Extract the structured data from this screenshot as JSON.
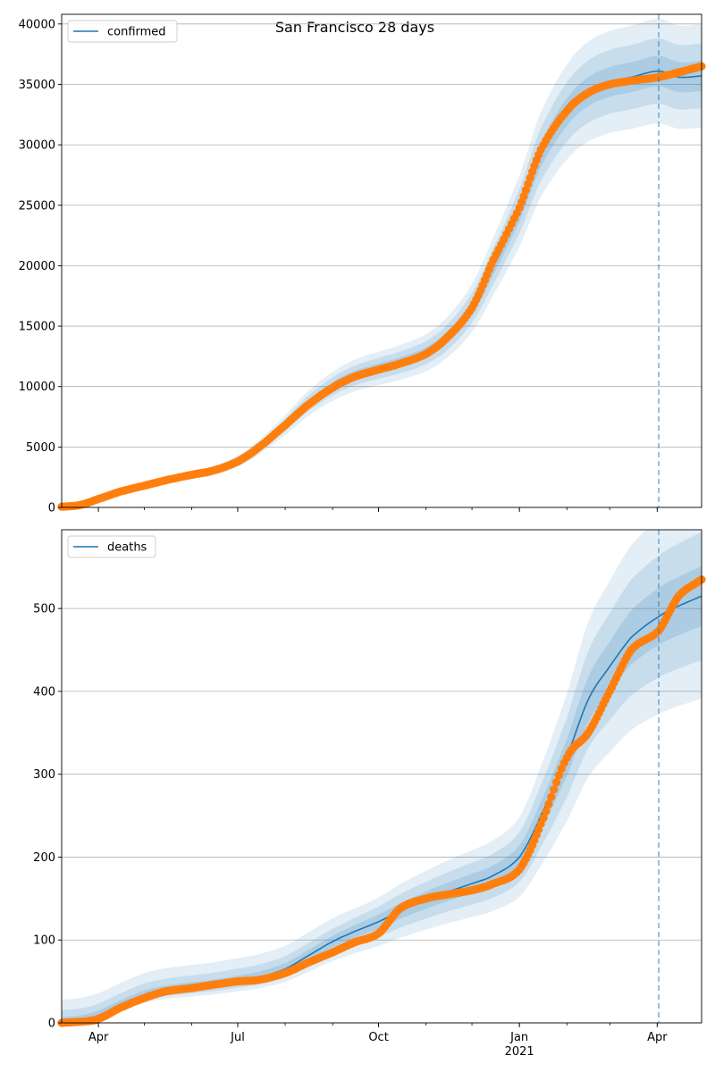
{
  "title": "San Francisco 28 days",
  "colors": {
    "line": "#1f77b4",
    "points": "#ff7f0e",
    "band": "#1f77b4",
    "grid": "#b0b0b0",
    "vline": "#1f77b4"
  },
  "x_axis": {
    "start": "2020-03-08",
    "end": "2021-04-30",
    "ticks": [
      {
        "date": "2020-04-01",
        "label": "Apr"
      },
      {
        "date": "2020-07-01",
        "label": "Jul"
      },
      {
        "date": "2020-10-01",
        "label": "Oct"
      },
      {
        "date": "2021-01-01",
        "label": "Jan",
        "sublabel": "2021"
      },
      {
        "date": "2021-04-01",
        "label": "Apr"
      }
    ],
    "forecast_start": "2021-04-02"
  },
  "chart_data": [
    {
      "type": "line",
      "legend": "confirmed",
      "legend_position": "top-left",
      "grid": "horizontal",
      "ylim": [
        0,
        40800
      ],
      "yticks": [
        0,
        5000,
        10000,
        15000,
        20000,
        25000,
        30000,
        35000,
        40000
      ],
      "fit": {
        "x": [
          "2020-03-08",
          "2020-03-20",
          "2020-04-01",
          "2020-04-15",
          "2020-05-01",
          "2020-05-15",
          "2020-06-01",
          "2020-06-15",
          "2020-07-01",
          "2020-07-15",
          "2020-08-01",
          "2020-08-15",
          "2020-09-01",
          "2020-09-15",
          "2020-10-01",
          "2020-10-15",
          "2020-11-01",
          "2020-11-15",
          "2020-12-01",
          "2020-12-15",
          "2021-01-01",
          "2021-01-15",
          "2021-02-01",
          "2021-02-15",
          "2021-03-01",
          "2021-03-15",
          "2021-04-02",
          "2021-04-15",
          "2021-04-30"
        ],
        "y": [
          30,
          150,
          700,
          1300,
          1750,
          2150,
          2650,
          3050,
          3800,
          5000,
          6800,
          8500,
          10000,
          10900,
          11500,
          12000,
          12800,
          14100,
          16500,
          20000,
          24500,
          29200,
          32700,
          34400,
          35200,
          35600,
          36100,
          35600,
          35700
        ],
        "band_pct_inner": 0.035,
        "band_pct_mid": 0.075,
        "band_pct_outer": 0.12
      },
      "observed": {
        "x": [
          "2020-03-08",
          "2020-03-20",
          "2020-04-01",
          "2020-04-15",
          "2020-05-01",
          "2020-05-15",
          "2020-06-01",
          "2020-06-15",
          "2020-07-01",
          "2020-07-15",
          "2020-08-01",
          "2020-08-15",
          "2020-09-01",
          "2020-09-15",
          "2020-10-01",
          "2020-10-15",
          "2020-11-01",
          "2020-11-15",
          "2020-12-01",
          "2020-12-15",
          "2021-01-01",
          "2021-01-15",
          "2021-02-01",
          "2021-02-15",
          "2021-03-01",
          "2021-03-15",
          "2021-04-02",
          "2021-04-15",
          "2021-04-30"
        ],
        "y": [
          50,
          200,
          700,
          1300,
          1800,
          2250,
          2700,
          3050,
          3800,
          5000,
          6800,
          8400,
          9900,
          10800,
          11400,
          11900,
          12700,
          14100,
          16500,
          20500,
          24800,
          29600,
          32800,
          34300,
          35000,
          35300,
          35600,
          36000,
          36500
        ]
      }
    },
    {
      "type": "line",
      "legend": "deaths",
      "legend_position": "top-left",
      "grid": "horizontal",
      "ylim": [
        0,
        595
      ],
      "yticks": [
        0,
        100,
        200,
        300,
        400,
        500
      ],
      "fit": {
        "x": [
          "2020-03-08",
          "2020-03-20",
          "2020-04-01",
          "2020-04-15",
          "2020-05-01",
          "2020-05-15",
          "2020-06-01",
          "2020-06-15",
          "2020-07-01",
          "2020-07-15",
          "2020-08-01",
          "2020-08-15",
          "2020-09-01",
          "2020-09-15",
          "2020-10-01",
          "2020-10-15",
          "2020-11-01",
          "2020-11-15",
          "2020-12-01",
          "2020-12-15",
          "2021-01-01",
          "2021-01-15",
          "2021-02-01",
          "2021-02-15",
          "2021-03-01",
          "2021-03-15",
          "2021-04-02",
          "2021-04-15",
          "2021-04-30"
        ],
        "y": [
          0,
          2,
          8,
          20,
          32,
          38,
          42,
          45,
          50,
          55,
          65,
          80,
          98,
          110,
          122,
          135,
          148,
          158,
          168,
          178,
          200,
          250,
          320,
          390,
          430,
          465,
          490,
          503,
          515
        ],
        "band_pct_inner": 0.07,
        "band_pct_mid": 0.15,
        "band_pct_outer": 0.24,
        "band_floor_outer": 28
      },
      "observed": {
        "x": [
          "2020-03-08",
          "2020-03-25",
          "2020-04-01",
          "2020-04-15",
          "2020-05-01",
          "2020-05-15",
          "2020-06-01",
          "2020-06-15",
          "2020-07-01",
          "2020-07-15",
          "2020-08-01",
          "2020-08-15",
          "2020-09-01",
          "2020-09-15",
          "2020-10-01",
          "2020-10-15",
          "2020-11-01",
          "2020-11-15",
          "2020-12-01",
          "2020-12-15",
          "2021-01-01",
          "2021-01-15",
          "2021-02-01",
          "2021-02-15",
          "2021-03-01",
          "2021-03-15",
          "2021-04-02",
          "2021-04-15",
          "2021-04-30"
        ],
        "y": [
          0,
          2,
          5,
          18,
          30,
          38,
          42,
          46,
          50,
          52,
          60,
          72,
          85,
          97,
          108,
          138,
          150,
          155,
          160,
          168,
          185,
          240,
          320,
          350,
          400,
          450,
          473,
          515,
          535
        ]
      }
    }
  ]
}
